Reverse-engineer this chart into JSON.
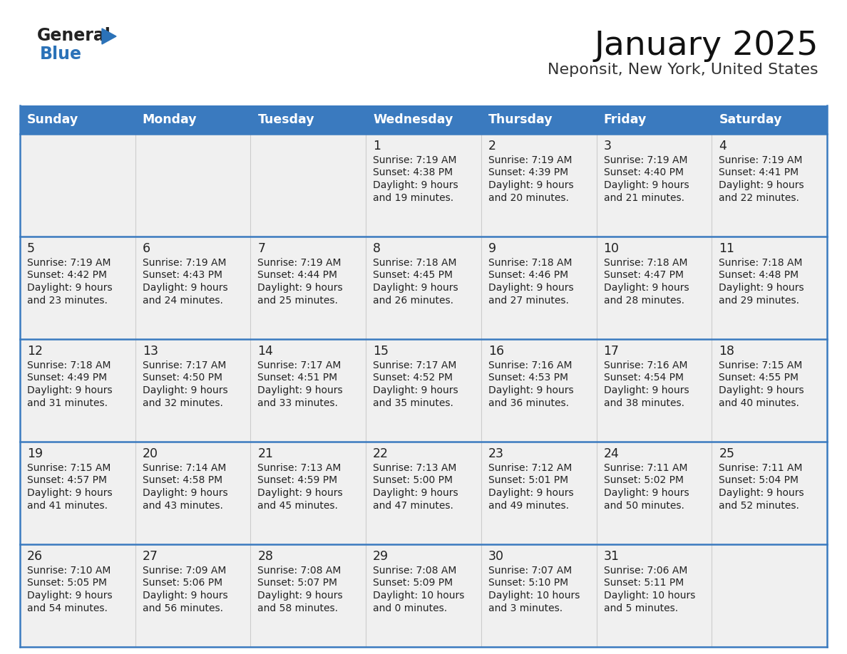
{
  "title": "January 2025",
  "subtitle": "Neponsit, New York, United States",
  "days_of_week": [
    "Sunday",
    "Monday",
    "Tuesday",
    "Wednesday",
    "Thursday",
    "Friday",
    "Saturday"
  ],
  "header_bg": "#3a7abf",
  "header_text": "#ffffff",
  "cell_bg": "#f0f0f0",
  "border_color": "#3a7abf",
  "text_color": "#222222",
  "generalblue_dark": "#222222",
  "generalblue_blue": "#2b72b8",
  "calendar_data": [
    [
      null,
      null,
      null,
      {
        "day": 1,
        "sunrise": "7:19 AM",
        "sunset": "4:38 PM",
        "daylight_h": "9 hours",
        "daylight_m": "and 19 minutes."
      },
      {
        "day": 2,
        "sunrise": "7:19 AM",
        "sunset": "4:39 PM",
        "daylight_h": "9 hours",
        "daylight_m": "and 20 minutes."
      },
      {
        "day": 3,
        "sunrise": "7:19 AM",
        "sunset": "4:40 PM",
        "daylight_h": "9 hours",
        "daylight_m": "and 21 minutes."
      },
      {
        "day": 4,
        "sunrise": "7:19 AM",
        "sunset": "4:41 PM",
        "daylight_h": "9 hours",
        "daylight_m": "and 22 minutes."
      }
    ],
    [
      {
        "day": 5,
        "sunrise": "7:19 AM",
        "sunset": "4:42 PM",
        "daylight_h": "9 hours",
        "daylight_m": "and 23 minutes."
      },
      {
        "day": 6,
        "sunrise": "7:19 AM",
        "sunset": "4:43 PM",
        "daylight_h": "9 hours",
        "daylight_m": "and 24 minutes."
      },
      {
        "day": 7,
        "sunrise": "7:19 AM",
        "sunset": "4:44 PM",
        "daylight_h": "9 hours",
        "daylight_m": "and 25 minutes."
      },
      {
        "day": 8,
        "sunrise": "7:18 AM",
        "sunset": "4:45 PM",
        "daylight_h": "9 hours",
        "daylight_m": "and 26 minutes."
      },
      {
        "day": 9,
        "sunrise": "7:18 AM",
        "sunset": "4:46 PM",
        "daylight_h": "9 hours",
        "daylight_m": "and 27 minutes."
      },
      {
        "day": 10,
        "sunrise": "7:18 AM",
        "sunset": "4:47 PM",
        "daylight_h": "9 hours",
        "daylight_m": "and 28 minutes."
      },
      {
        "day": 11,
        "sunrise": "7:18 AM",
        "sunset": "4:48 PM",
        "daylight_h": "9 hours",
        "daylight_m": "and 29 minutes."
      }
    ],
    [
      {
        "day": 12,
        "sunrise": "7:18 AM",
        "sunset": "4:49 PM",
        "daylight_h": "9 hours",
        "daylight_m": "and 31 minutes."
      },
      {
        "day": 13,
        "sunrise": "7:17 AM",
        "sunset": "4:50 PM",
        "daylight_h": "9 hours",
        "daylight_m": "and 32 minutes."
      },
      {
        "day": 14,
        "sunrise": "7:17 AM",
        "sunset": "4:51 PM",
        "daylight_h": "9 hours",
        "daylight_m": "and 33 minutes."
      },
      {
        "day": 15,
        "sunrise": "7:17 AM",
        "sunset": "4:52 PM",
        "daylight_h": "9 hours",
        "daylight_m": "and 35 minutes."
      },
      {
        "day": 16,
        "sunrise": "7:16 AM",
        "sunset": "4:53 PM",
        "daylight_h": "9 hours",
        "daylight_m": "and 36 minutes."
      },
      {
        "day": 17,
        "sunrise": "7:16 AM",
        "sunset": "4:54 PM",
        "daylight_h": "9 hours",
        "daylight_m": "and 38 minutes."
      },
      {
        "day": 18,
        "sunrise": "7:15 AM",
        "sunset": "4:55 PM",
        "daylight_h": "9 hours",
        "daylight_m": "and 40 minutes."
      }
    ],
    [
      {
        "day": 19,
        "sunrise": "7:15 AM",
        "sunset": "4:57 PM",
        "daylight_h": "9 hours",
        "daylight_m": "and 41 minutes."
      },
      {
        "day": 20,
        "sunrise": "7:14 AM",
        "sunset": "4:58 PM",
        "daylight_h": "9 hours",
        "daylight_m": "and 43 minutes."
      },
      {
        "day": 21,
        "sunrise": "7:13 AM",
        "sunset": "4:59 PM",
        "daylight_h": "9 hours",
        "daylight_m": "and 45 minutes."
      },
      {
        "day": 22,
        "sunrise": "7:13 AM",
        "sunset": "5:00 PM",
        "daylight_h": "9 hours",
        "daylight_m": "and 47 minutes."
      },
      {
        "day": 23,
        "sunrise": "7:12 AM",
        "sunset": "5:01 PM",
        "daylight_h": "9 hours",
        "daylight_m": "and 49 minutes."
      },
      {
        "day": 24,
        "sunrise": "7:11 AM",
        "sunset": "5:02 PM",
        "daylight_h": "9 hours",
        "daylight_m": "and 50 minutes."
      },
      {
        "day": 25,
        "sunrise": "7:11 AM",
        "sunset": "5:04 PM",
        "daylight_h": "9 hours",
        "daylight_m": "and 52 minutes."
      }
    ],
    [
      {
        "day": 26,
        "sunrise": "7:10 AM",
        "sunset": "5:05 PM",
        "daylight_h": "9 hours",
        "daylight_m": "and 54 minutes."
      },
      {
        "day": 27,
        "sunrise": "7:09 AM",
        "sunset": "5:06 PM",
        "daylight_h": "9 hours",
        "daylight_m": "and 56 minutes."
      },
      {
        "day": 28,
        "sunrise": "7:08 AM",
        "sunset": "5:07 PM",
        "daylight_h": "9 hours",
        "daylight_m": "and 58 minutes."
      },
      {
        "day": 29,
        "sunrise": "7:08 AM",
        "sunset": "5:09 PM",
        "daylight_h": "10 hours",
        "daylight_m": "and 0 minutes."
      },
      {
        "day": 30,
        "sunrise": "7:07 AM",
        "sunset": "5:10 PM",
        "daylight_h": "10 hours",
        "daylight_m": "and 3 minutes."
      },
      {
        "day": 31,
        "sunrise": "7:06 AM",
        "sunset": "5:11 PM",
        "daylight_h": "10 hours",
        "daylight_m": "and 5 minutes."
      },
      null
    ]
  ]
}
